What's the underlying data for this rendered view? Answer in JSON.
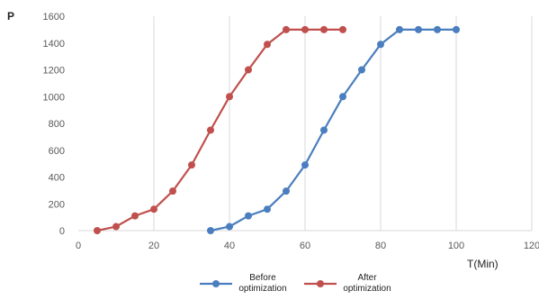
{
  "chart_data": {
    "type": "line",
    "title": "",
    "xlabel": "T(Min)",
    "ylabel": "P",
    "xlim": [
      0,
      120
    ],
    "ylim": [
      0,
      1600
    ],
    "xticks": [
      0,
      20,
      40,
      60,
      80,
      100,
      120
    ],
    "yticks": [
      0,
      200,
      400,
      600,
      800,
      1000,
      1200,
      1400,
      1600
    ],
    "grid": "vertical",
    "legend": "bottom",
    "series": [
      {
        "name": "Before optimization",
        "legend_lines": [
          "Before",
          "optimization"
        ],
        "color": "#4a7ebf",
        "x": [
          35,
          40,
          45,
          50,
          55,
          60,
          65,
          70,
          75,
          80,
          85,
          90,
          95,
          100
        ],
        "y": [
          0,
          30,
          110,
          160,
          295,
          490,
          750,
          1000,
          1200,
          1390,
          1500,
          1500,
          1500,
          1500
        ]
      },
      {
        "name": "After optimization",
        "legend_lines": [
          "After",
          "optimization"
        ],
        "color": "#c0504d",
        "x": [
          5,
          10,
          15,
          20,
          25,
          30,
          35,
          40,
          45,
          50,
          55,
          60,
          65,
          70
        ],
        "y": [
          0,
          30,
          110,
          160,
          295,
          490,
          750,
          1000,
          1200,
          1390,
          1500,
          1500,
          1500,
          1500
        ]
      }
    ]
  }
}
